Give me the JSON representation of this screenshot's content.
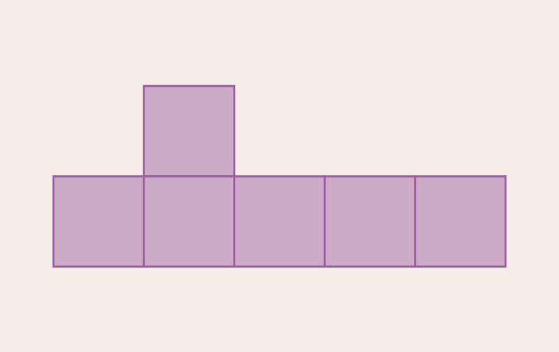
{
  "colors": {
    "background": "#f5eee8",
    "square_fill": "#cbabc6",
    "square_stroke": "#9b5aa0"
  },
  "net": {
    "cell_count": 6,
    "cells": [
      {
        "col": 1,
        "row": 0
      },
      {
        "col": 0,
        "row": 1
      },
      {
        "col": 1,
        "row": 1
      },
      {
        "col": 2,
        "row": 1
      },
      {
        "col": 3,
        "row": 1
      },
      {
        "col": 4,
        "row": 1
      }
    ]
  }
}
